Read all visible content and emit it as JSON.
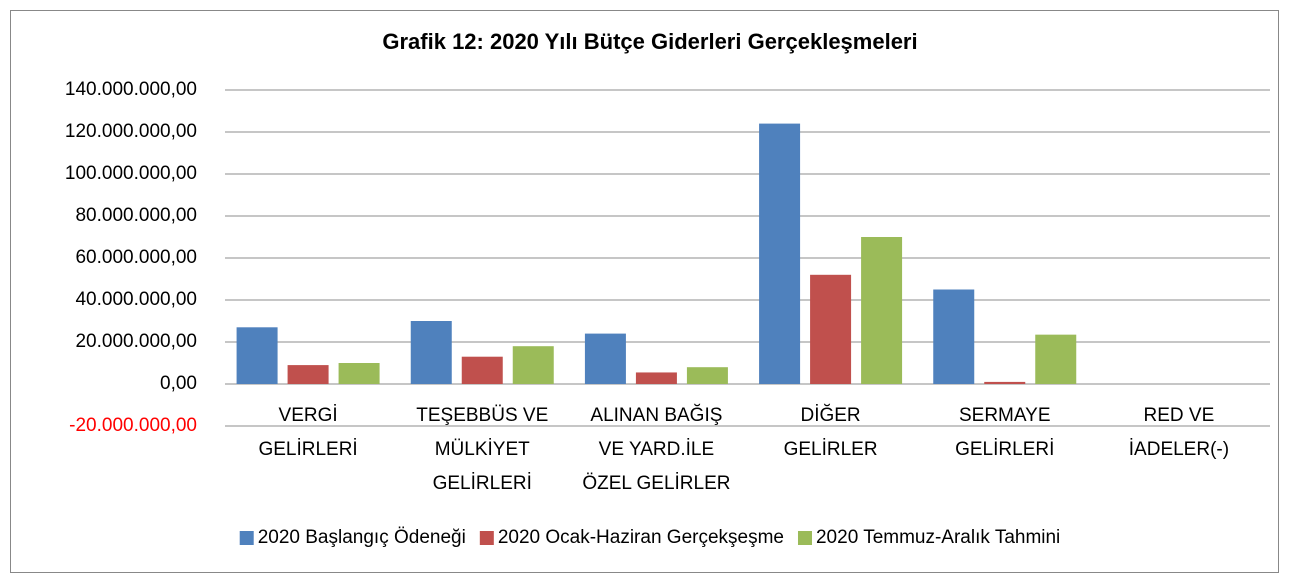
{
  "chart_data": {
    "type": "bar",
    "title": "Grafik 12: 2020 Yılı  Bütçe Giderleri Gerçekleşmeleri",
    "categories": [
      "VERGİ GELİRLERİ",
      "TEŞEBBÜS VE MÜLKİYET GELİRLERİ",
      "ALINAN BAĞIŞ VE YARD.İLE ÖZEL GELİRLER",
      "DİĞER GELİRLER",
      "SERMAYE GELİRLERİ",
      "RED VE İADELER(-)"
    ],
    "series": [
      {
        "name": "2020 Başlangıç Ödeneği",
        "color": "#4f81bd",
        "values": [
          27000000,
          30000000,
          24000000,
          124000000,
          45000000,
          0
        ]
      },
      {
        "name": "2020 Ocak-Haziran Gerçekşeşme",
        "color": "#c0504d",
        "values": [
          9000000,
          13000000,
          5500000,
          52000000,
          1000000,
          0
        ]
      },
      {
        "name": "2020 Temmuz-Aralık Tahmini",
        "color": "#9bbb59",
        "values": [
          10000000,
          18000000,
          8000000,
          70000000,
          23500000,
          0
        ]
      }
    ],
    "ylim": [
      -20000000,
      140000000
    ],
    "yticks": [
      {
        "value": -20000000,
        "label": "-20.000.000,00"
      },
      {
        "value": 0,
        "label": "0,00"
      },
      {
        "value": 20000000,
        "label": "20.000.000,00"
      },
      {
        "value": 40000000,
        "label": "40.000.000,00"
      },
      {
        "value": 60000000,
        "label": "60.000.000,00"
      },
      {
        "value": 80000000,
        "label": "80.000.000,00"
      },
      {
        "value": 100000000,
        "label": "100.000.000,00"
      },
      {
        "value": 120000000,
        "label": "120.000.000,00"
      },
      {
        "value": 140000000,
        "label": "140.000.000,00"
      }
    ],
    "grid": true,
    "negative_tick_color": "#ff0000",
    "legend": "bottom"
  }
}
